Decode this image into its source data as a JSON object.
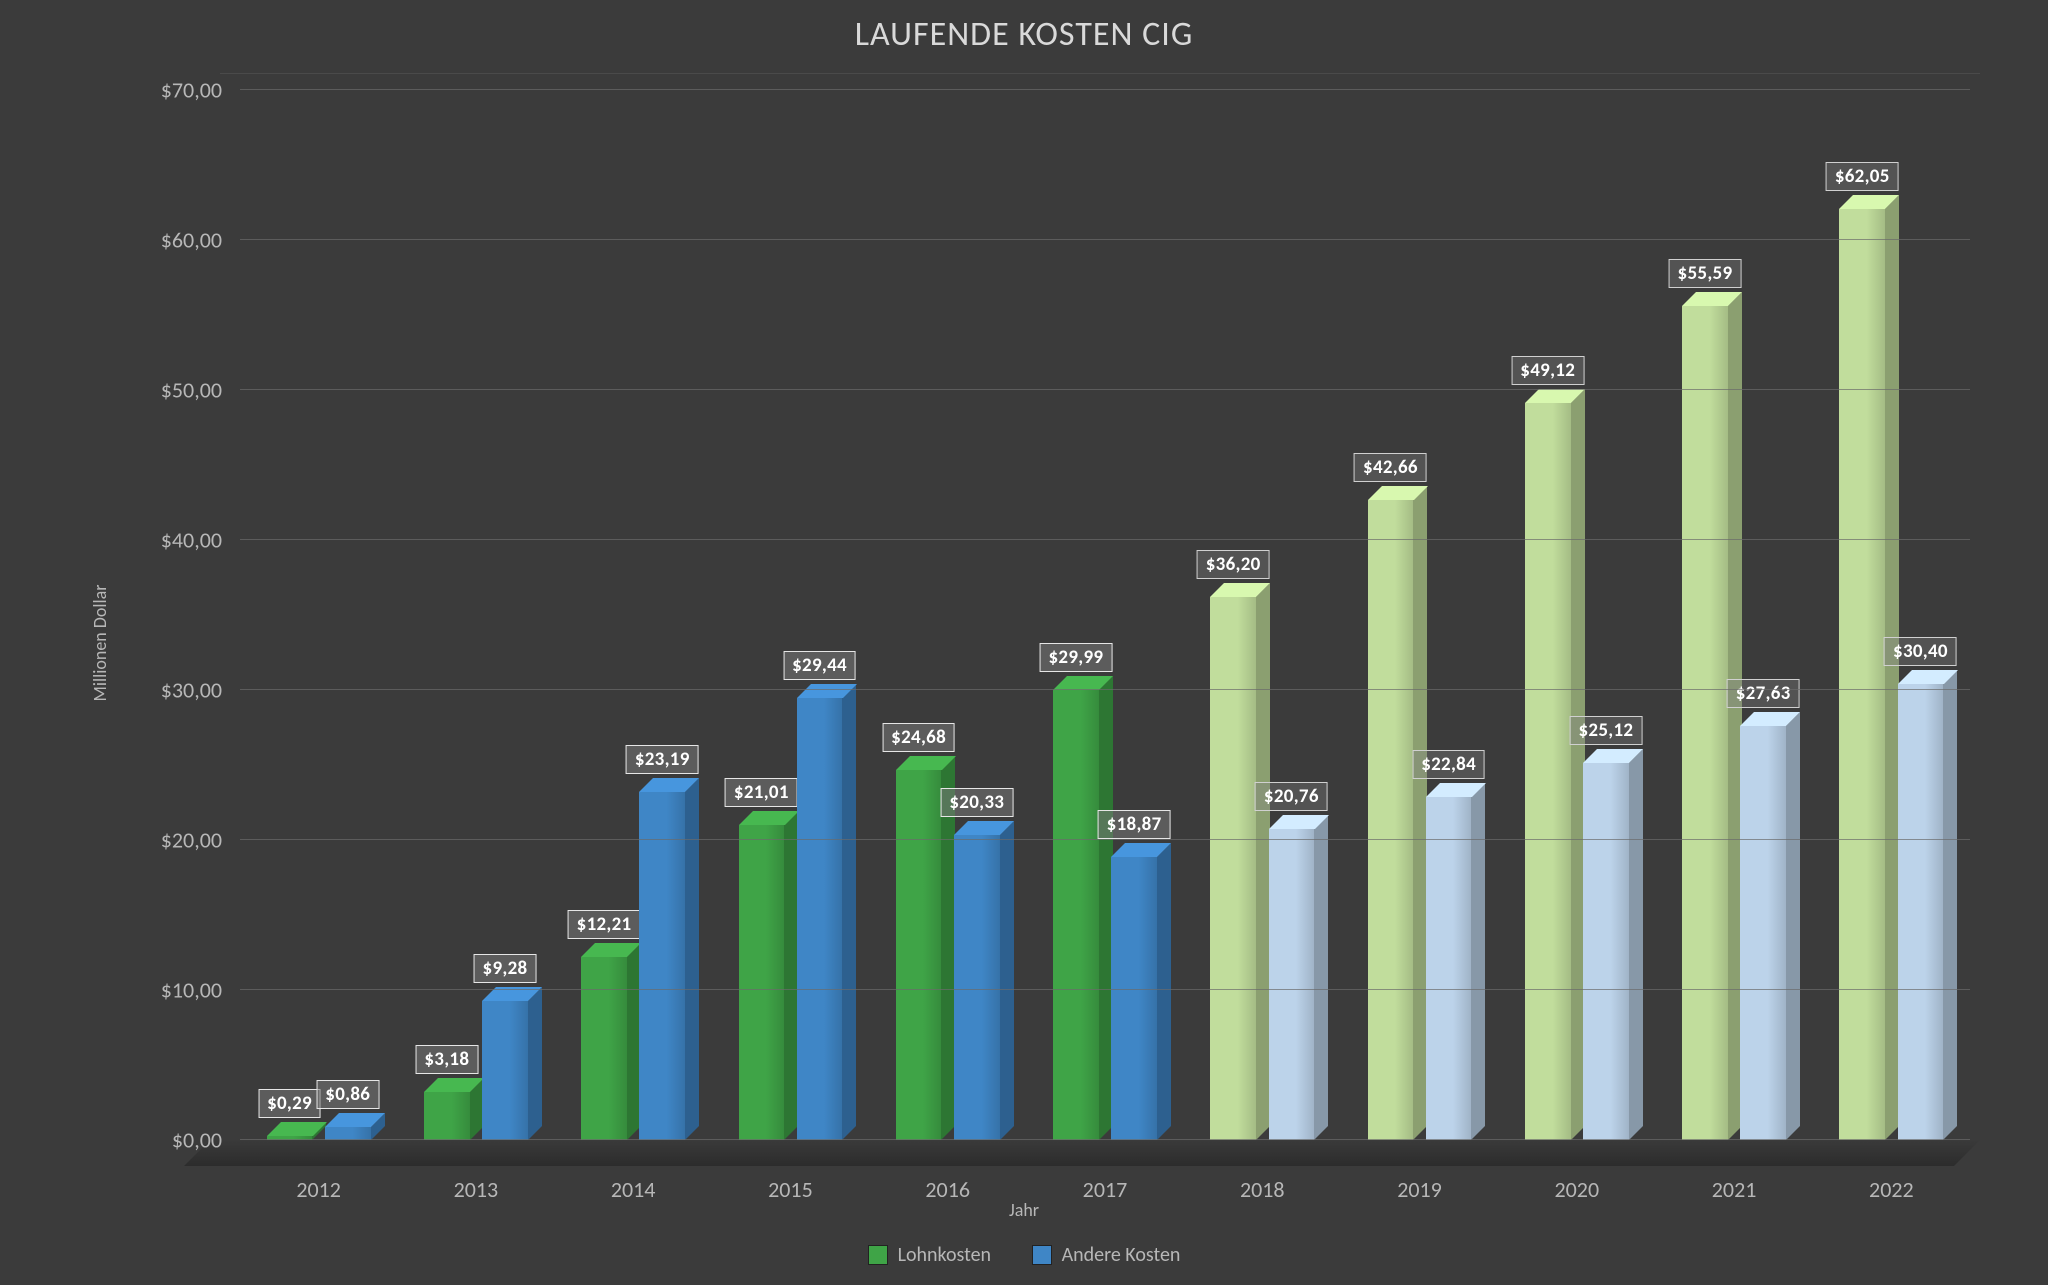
{
  "chart": {
    "type": "bar",
    "title": "LAUFENDE KOSTEN CIG",
    "title_fontsize": 34,
    "title_color": "#d9d9d9",
    "background_color": "#3b3b3b",
    "plot_background_color": "#3b3b3b",
    "grid_color": "#6b6b6b",
    "floor_color": "#2e2e2e",
    "y_axis": {
      "title": "Millionen Dollar",
      "min": 0,
      "max": 70,
      "tick_step": 10,
      "tick_labels": [
        "$0,00",
        "$10,00",
        "$20,00",
        "$30,00",
        "$40,00",
        "$50,00",
        "$60,00",
        "$70,00"
      ],
      "label_color": "#b7b7b7",
      "label_fontsize": 22
    },
    "x_axis": {
      "title": "Jahr",
      "label_color": "#b7b7b7",
      "label_fontsize": 22
    },
    "series": [
      {
        "key": "lohnkosten",
        "name": "Lohnkosten",
        "color": "#3fa447",
        "faded_color": "#c1dd9c"
      },
      {
        "key": "andere_kosten",
        "name": "Andere Kosten",
        "color": "#3f86c6",
        "faded_color": "#bcd3ea"
      }
    ],
    "categories": [
      "2012",
      "2013",
      "2014",
      "2015",
      "2016",
      "2017",
      "2018",
      "2019",
      "2020",
      "2021",
      "2022"
    ],
    "data": [
      {
        "year": "2012",
        "lohnkosten": 0.29,
        "andere_kosten": 0.86,
        "lohnkosten_label": "$0,29",
        "andere_kosten_label": "$0,86",
        "faded": false
      },
      {
        "year": "2013",
        "lohnkosten": 3.18,
        "andere_kosten": 9.28,
        "lohnkosten_label": "$3,18",
        "andere_kosten_label": "$9,28",
        "faded": false
      },
      {
        "year": "2014",
        "lohnkosten": 12.21,
        "andere_kosten": 23.19,
        "lohnkosten_label": "$12,21",
        "andere_kosten_label": "$23,19",
        "faded": false
      },
      {
        "year": "2015",
        "lohnkosten": 21.01,
        "andere_kosten": 29.44,
        "lohnkosten_label": "$21,01",
        "andere_kosten_label": "$29,44",
        "faded": false
      },
      {
        "year": "2016",
        "lohnkosten": 24.68,
        "andere_kosten": 20.33,
        "lohnkosten_label": "$24,68",
        "andere_kosten_label": "$20,33",
        "faded": false
      },
      {
        "year": "2017",
        "lohnkosten": 29.99,
        "andere_kosten": 18.87,
        "lohnkosten_label": "$29,99",
        "andere_kosten_label": "$18,87",
        "faded": false
      },
      {
        "year": "2018",
        "lohnkosten": 36.2,
        "andere_kosten": 20.76,
        "lohnkosten_label": "$36,20",
        "andere_kosten_label": "$20,76",
        "faded": true
      },
      {
        "year": "2019",
        "lohnkosten": 42.66,
        "andere_kosten": 22.84,
        "lohnkosten_label": "$42,66",
        "andere_kosten_label": "$22,84",
        "faded": true
      },
      {
        "year": "2020",
        "lohnkosten": 49.12,
        "andere_kosten": 25.12,
        "lohnkosten_label": "$49,12",
        "andere_kosten_label": "$25,12",
        "faded": true
      },
      {
        "year": "2021",
        "lohnkosten": 55.59,
        "andere_kosten": 27.63,
        "lohnkosten_label": "$55,59",
        "andere_kosten_label": "$27,63",
        "faded": true
      },
      {
        "year": "2022",
        "lohnkosten": 62.05,
        "andere_kosten": 30.4,
        "lohnkosten_label": "$62,05",
        "andere_kosten_label": "$30,40",
        "faded": true
      }
    ],
    "bar_width_ratio": 0.66,
    "bar_gap_ratio": 0.08,
    "datalabel": {
      "fontsize": 19,
      "text_color": "#ffffff",
      "background": "rgba(120,120,120,0.55)",
      "border_color": "#e6e6e6"
    },
    "legend_fontsize": 20
  }
}
